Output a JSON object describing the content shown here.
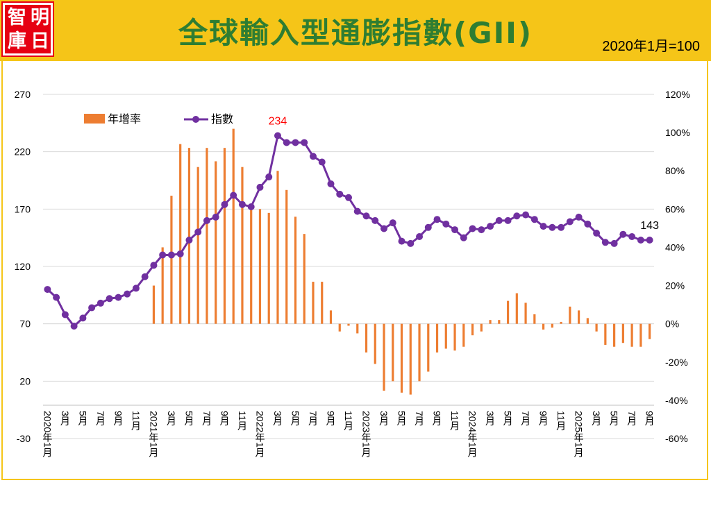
{
  "header": {
    "logo_chars": [
      "智",
      "明",
      "庫",
      "日"
    ],
    "title": "全球輸入型通膨指數(GII)",
    "base_note": "2020年1月=100"
  },
  "colors": {
    "banner": "#f5c518",
    "title": "#2e7d32",
    "logo_bg": "#e60012",
    "bar": "#ed7d31",
    "line": "#7030a0",
    "peak_label": "#ff0000"
  },
  "chart_data": {
    "type": "bar+line",
    "title": "全球輸入型通膨指數(GII)",
    "legend": {
      "position": "top-left",
      "entries": [
        {
          "name": "年增率",
          "type": "bar"
        },
        {
          "name": "指數",
          "type": "line"
        }
      ]
    },
    "y_left": {
      "min": -30,
      "max": 270,
      "ticks": [
        -30,
        20,
        70,
        120,
        170,
        220,
        270
      ]
    },
    "y_right": {
      "min": -60,
      "max": 120,
      "ticks": [
        "-60%",
        "-40%",
        "-20%",
        "0%",
        "20%",
        "40%",
        "60%",
        "80%",
        "100%",
        "120%"
      ]
    },
    "x_ticks": [
      {
        "i": 0,
        "label": "2020年1月"
      },
      {
        "i": 2,
        "label": "3月"
      },
      {
        "i": 4,
        "label": "5月"
      },
      {
        "i": 6,
        "label": "7月"
      },
      {
        "i": 8,
        "label": "9月"
      },
      {
        "i": 10,
        "label": "11月"
      },
      {
        "i": 12,
        "label": "2021年1月"
      },
      {
        "i": 14,
        "label": "3月"
      },
      {
        "i": 16,
        "label": "5月"
      },
      {
        "i": 18,
        "label": "7月"
      },
      {
        "i": 20,
        "label": "9月"
      },
      {
        "i": 22,
        "label": "11月"
      },
      {
        "i": 24,
        "label": "2022年1月"
      },
      {
        "i": 26,
        "label": "3月"
      },
      {
        "i": 28,
        "label": "5月"
      },
      {
        "i": 30,
        "label": "7月"
      },
      {
        "i": 32,
        "label": "9月"
      },
      {
        "i": 34,
        "label": "11月"
      },
      {
        "i": 36,
        "label": "2023年1月"
      },
      {
        "i": 38,
        "label": "3月"
      },
      {
        "i": 40,
        "label": "5月"
      },
      {
        "i": 42,
        "label": "7月"
      },
      {
        "i": 44,
        "label": "9月"
      },
      {
        "i": 46,
        "label": "11月"
      },
      {
        "i": 48,
        "label": "2024年1月"
      },
      {
        "i": 50,
        "label": "3月"
      },
      {
        "i": 52,
        "label": "5月"
      },
      {
        "i": 54,
        "label": "7月"
      },
      {
        "i": 56,
        "label": "9月"
      },
      {
        "i": 58,
        "label": "11月"
      },
      {
        "i": 60,
        "label": "2025年1月"
      },
      {
        "i": 62,
        "label": "3月"
      },
      {
        "i": 64,
        "label": "5月"
      },
      {
        "i": 66,
        "label": "7月"
      },
      {
        "i": 68,
        "label": "9月"
      }
    ],
    "series": [
      {
        "name": "指數",
        "axis": "left",
        "values": [
          100,
          93,
          78,
          68,
          75,
          84,
          88,
          92,
          93,
          96,
          101,
          111,
          121,
          130,
          130,
          131,
          143,
          150,
          160,
          163,
          174,
          182,
          174,
          172,
          189,
          198,
          234,
          228,
          228,
          228,
          216,
          211,
          192,
          183,
          180,
          168,
          164,
          160,
          153,
          158,
          142,
          140,
          146,
          154,
          161,
          157,
          152,
          145,
          153,
          152,
          155,
          160,
          160,
          164,
          165,
          161,
          155,
          154,
          154,
          159,
          163,
          157,
          149,
          141,
          140,
          148,
          146,
          143,
          143
        ]
      },
      {
        "name": "年增率",
        "axis": "right",
        "values": [
          null,
          null,
          null,
          null,
          null,
          null,
          null,
          null,
          null,
          null,
          null,
          null,
          20,
          40,
          67,
          94,
          92,
          82,
          92,
          85,
          92,
          102,
          82,
          60,
          60,
          58,
          80,
          70,
          56,
          47,
          22,
          22,
          7,
          -4,
          -1,
          -5,
          -15,
          -21,
          -35,
          -30,
          -36,
          -37,
          -30,
          -25,
          -15,
          -13,
          -14,
          -12,
          -6,
          -4,
          2,
          2,
          12,
          16,
          11,
          5,
          -3,
          -2,
          1,
          9,
          7,
          3,
          -4,
          -11,
          -12,
          -10,
          -12,
          -12,
          -8
        ]
      }
    ],
    "annotations": [
      {
        "label": "234",
        "series": "指數",
        "i": 26,
        "color": "red"
      },
      {
        "label": "143",
        "series": "指數",
        "i": 68,
        "color": "black"
      }
    ]
  }
}
